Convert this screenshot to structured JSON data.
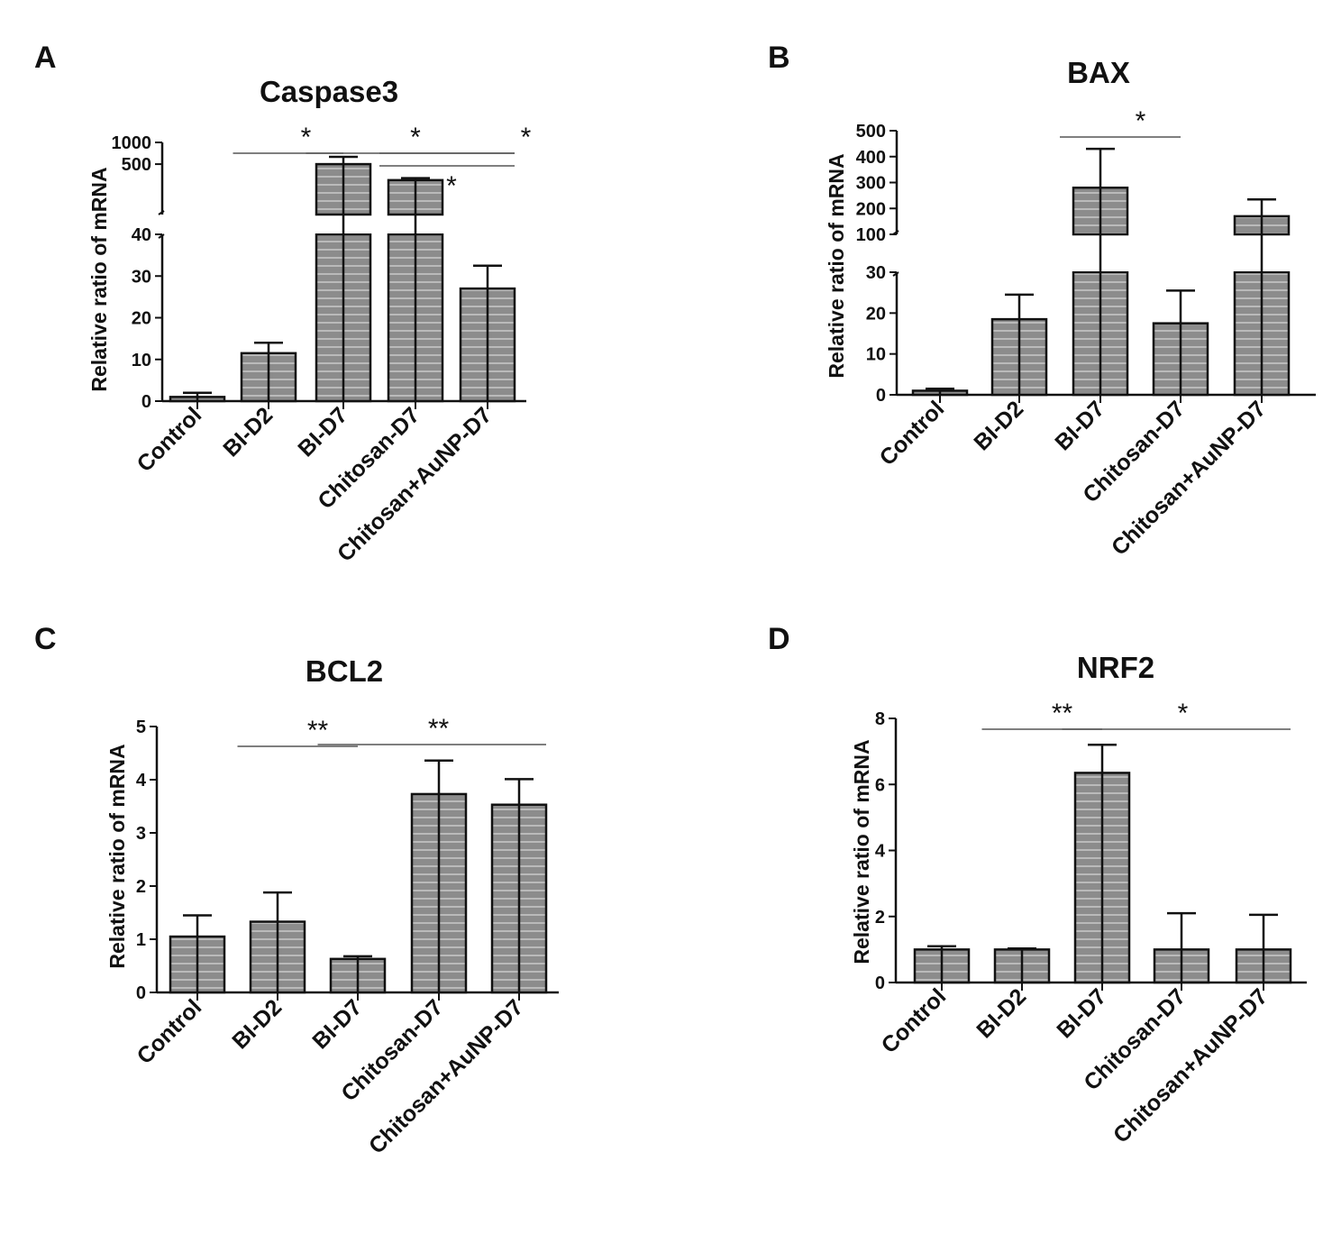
{
  "colors": {
    "bar_fill": "#8c8c8c",
    "bar_stripe": "#d8d8d8",
    "axis": "#111111",
    "sig_line": "#555555"
  },
  "chart_data": [
    {
      "panel": "A",
      "type": "bar",
      "title": "Caspase3",
      "ylabel": "Relative ratio of mRNA",
      "categories": [
        "Control",
        "BI-D2",
        "BI-D7",
        "Chitosan-D7",
        "Chitosan+AuNP-D7"
      ],
      "values": [
        1,
        11.5,
        500,
        300,
        27
      ],
      "errors": [
        1,
        2.5,
        130,
        20,
        5.5
      ],
      "broken_axis": {
        "lower_range": [
          0,
          40
        ],
        "upper_range": [
          100,
          1000
        ],
        "lower_ticks": [
          0,
          10,
          20,
          30,
          40
        ],
        "upper_ticks": [
          500,
          1000
        ]
      },
      "significance": [
        {
          "from": 1,
          "to": 2,
          "label": "*"
        },
        {
          "from": 2,
          "to": 4,
          "label": "*"
        },
        {
          "from": 3,
          "to": 4,
          "label": "*",
          "label_at": 4.5
        },
        {
          "from": 3,
          "to": 4,
          "label": "*",
          "label_at": 3.5,
          "label_below": true
        }
      ]
    },
    {
      "panel": "B",
      "type": "bar",
      "title": "BAX",
      "ylabel": "Relative ratio of mRNA",
      "categories": [
        "Control",
        "BI-D2",
        "BI-D7",
        "Chitosan-D7",
        "Chitosan+AuNP-D7"
      ],
      "values": [
        1,
        18.5,
        280,
        17.5,
        170
      ],
      "errors": [
        0.5,
        6,
        150,
        8,
        65
      ],
      "broken_axis": {
        "lower_range": [
          0,
          30
        ],
        "upper_range": [
          100,
          500
        ],
        "lower_ticks": [
          0,
          10,
          20,
          30
        ],
        "upper_ticks": [
          100,
          200,
          300,
          400,
          500
        ]
      },
      "significance": [
        {
          "from": 2,
          "to": 3,
          "label": "*"
        }
      ]
    },
    {
      "panel": "C",
      "type": "bar",
      "title": "BCL2",
      "ylabel": "Relative ratio of mRNA",
      "categories": [
        "Control",
        "BI-D2",
        "BI-D7",
        "Chitosan-D7",
        "Chitosan+AuNP-D7"
      ],
      "values": [
        1.05,
        1.33,
        0.63,
        3.73,
        3.53
      ],
      "errors": [
        0.4,
        0.55,
        0.05,
        0.63,
        0.48
      ],
      "ylim": [
        0,
        5
      ],
      "ticks": [
        0,
        1,
        2,
        3,
        4,
        5
      ],
      "significance": [
        {
          "from": 1,
          "to": 2,
          "label": "**"
        },
        {
          "from": 2,
          "to": 4,
          "label": "**"
        }
      ]
    },
    {
      "panel": "D",
      "type": "bar",
      "title": "NRF2",
      "ylabel": "Relative ratio of mRNA",
      "categories": [
        "Control",
        "BI-D2",
        "BI-D7",
        "Chitosan-D7",
        "Chitosan+AuNP-D7"
      ],
      "values": [
        1,
        1,
        6.35,
        1,
        1
      ],
      "errors": [
        0.1,
        0.03,
        0.85,
        1.1,
        1.05
      ],
      "ylim": [
        0,
        8
      ],
      "ticks": [
        0,
        2,
        4,
        6,
        8
      ],
      "significance": [
        {
          "from": 1,
          "to": 2,
          "label": "**"
        },
        {
          "from": 2,
          "to": 4,
          "label": "*"
        }
      ]
    }
  ]
}
